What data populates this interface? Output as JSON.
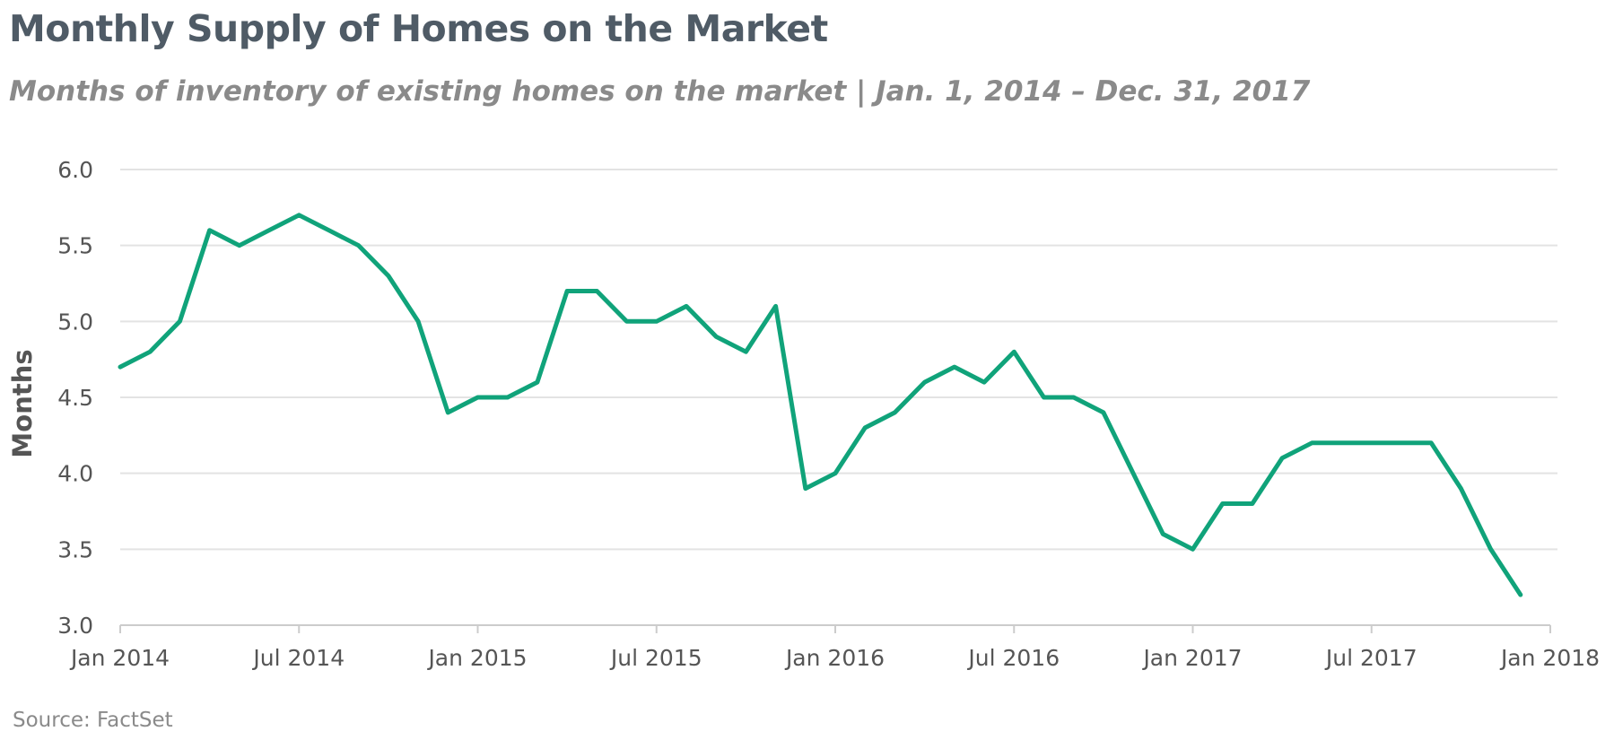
{
  "title": "Monthly Supply of Homes on the Market",
  "subtitle": "Months of inventory of existing homes on the market  |  Jan. 1, 2014 – Dec. 31, 2017",
  "source": "Source: FactSet",
  "chart_data": {
    "type": "line",
    "ylabel": "Months",
    "ylim": [
      3.0,
      6.0
    ],
    "yticks": [
      "6.0",
      "5.5",
      "5.0",
      "4.5",
      "4.0",
      "3.5",
      "3.0"
    ],
    "xlim": [
      "2014-01",
      "2018-01"
    ],
    "xticks": [
      {
        "date": "2014-01",
        "label": "Jan 2014"
      },
      {
        "date": "2014-07",
        "label": "Jul 2014"
      },
      {
        "date": "2015-01",
        "label": "Jan 2015"
      },
      {
        "date": "2015-07",
        "label": "Jul 2015"
      },
      {
        "date": "2016-01",
        "label": "Jan 2016"
      },
      {
        "date": "2016-07",
        "label": "Jul 2016"
      },
      {
        "date": "2017-01",
        "label": "Jan 2017"
      },
      {
        "date": "2017-07",
        "label": "Jul 2017"
      },
      {
        "date": "2018-01",
        "label": "Jan 2018"
      }
    ],
    "grid": true,
    "line_color": "#10a37a",
    "series": [
      {
        "x": [
          "2014-01",
          "2014-02",
          "2014-03",
          "2014-04",
          "2014-05",
          "2014-06",
          "2014-07",
          "2014-08",
          "2014-09",
          "2014-10",
          "2014-11",
          "2014-12",
          "2015-01",
          "2015-02",
          "2015-03",
          "2015-04",
          "2015-05",
          "2015-06",
          "2015-07",
          "2015-08",
          "2015-09",
          "2015-10",
          "2015-11",
          "2015-12",
          "2016-01",
          "2016-02",
          "2016-03",
          "2016-04",
          "2016-05",
          "2016-06",
          "2016-07",
          "2016-08",
          "2016-09",
          "2016-10",
          "2016-11",
          "2016-12",
          "2017-01",
          "2017-02",
          "2017-03",
          "2017-04",
          "2017-05",
          "2017-06",
          "2017-07",
          "2017-08",
          "2017-09",
          "2017-10",
          "2017-11",
          "2017-12"
        ],
        "values": [
          4.7,
          4.8,
          5.0,
          5.6,
          5.5,
          5.6,
          5.7,
          5.6,
          5.5,
          5.3,
          5.0,
          4.4,
          4.5,
          4.5,
          4.6,
          5.2,
          5.2,
          5.0,
          5.0,
          5.1,
          4.9,
          4.8,
          5.1,
          3.9,
          4.0,
          4.3,
          4.4,
          4.6,
          4.7,
          4.6,
          4.8,
          4.5,
          4.5,
          4.4,
          4.0,
          3.6,
          3.5,
          3.8,
          3.8,
          4.1,
          4.2,
          4.2,
          4.2,
          4.2,
          4.2,
          3.9,
          3.5,
          3.2
        ]
      }
    ]
  }
}
